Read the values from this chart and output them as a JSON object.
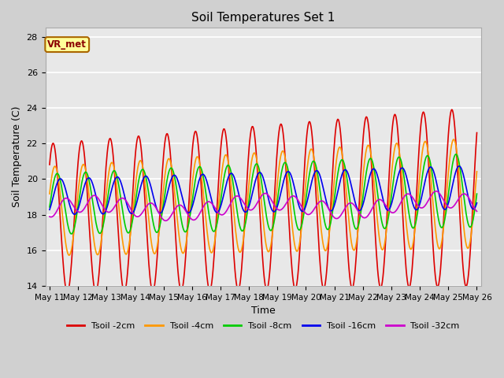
{
  "title": "Soil Temperatures Set 1",
  "xlabel": "Time",
  "ylabel": "Soil Temperature (C)",
  "ylim": [
    14,
    28.5
  ],
  "yticks": [
    14,
    16,
    18,
    20,
    22,
    24,
    26,
    28
  ],
  "xtick_labels": [
    "May 11",
    "May 12",
    "May 13",
    "May 14",
    "May 15",
    "May 16",
    "May 17",
    "May 18",
    "May 19",
    "May 20",
    "May 21",
    "May 22",
    "May 23",
    "May 24",
    "May 25",
    "May 26"
  ],
  "fig_bg": "#d0d0d0",
  "ax_bg": "#e8e8e8",
  "colors": {
    "Tsoil -2cm": "#dd0000",
    "Tsoil -4cm": "#ff9900",
    "Tsoil -8cm": "#00cc00",
    "Tsoil -16cm": "#0000ee",
    "Tsoil -32cm": "#cc00cc"
  },
  "series_labels": [
    "Tsoil -2cm",
    "Tsoil -4cm",
    "Tsoil -8cm",
    "Tsoil -16cm",
    "Tsoil -32cm"
  ],
  "vr_met_text": "VR_met",
  "vr_met_color": "#8B0000",
  "vr_met_bg": "#ffff99",
  "vr_met_border": "#aa6600"
}
